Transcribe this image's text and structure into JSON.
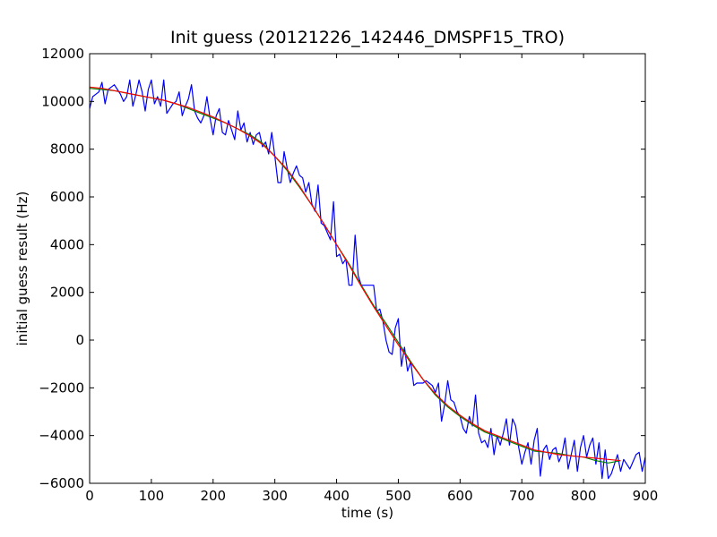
{
  "chart_data": {
    "type": "line",
    "title": "Init guess (20121226_142446_DMSPF15_TRO)",
    "xlabel": "time (s)",
    "ylabel": "initial guess result (Hz)",
    "xlim": [
      0,
      900
    ],
    "ylim": [
      -6000,
      12000
    ],
    "x_ticks": [
      0,
      100,
      200,
      300,
      400,
      500,
      600,
      700,
      800,
      900
    ],
    "y_ticks": [
      -6000,
      -4000,
      -2000,
      0,
      2000,
      4000,
      6000,
      8000,
      10000,
      12000
    ],
    "grid": false,
    "legend": "none",
    "series": [
      {
        "color": "#0000ff",
        "x": [
          0,
          5,
          10,
          15,
          20,
          25,
          30,
          35,
          40,
          45,
          50,
          55,
          60,
          65,
          70,
          75,
          80,
          85,
          90,
          95,
          100,
          105,
          110,
          115,
          120,
          125,
          130,
          135,
          140,
          145,
          150,
          155,
          160,
          165,
          170,
          175,
          180,
          185,
          190,
          195,
          200,
          205,
          210,
          215,
          220,
          225,
          230,
          235,
          240,
          245,
          250,
          255,
          260,
          265,
          270,
          275,
          280,
          285,
          290,
          295,
          300,
          305,
          310,
          315,
          320,
          325,
          330,
          335,
          340,
          345,
          350,
          355,
          360,
          365,
          370,
          375,
          380,
          385,
          390,
          395,
          400,
          405,
          410,
          415,
          420,
          425,
          430,
          435,
          440,
          445,
          450,
          455,
          460,
          465,
          470,
          475,
          480,
          485,
          490,
          495,
          500,
          505,
          510,
          515,
          520,
          525,
          530,
          535,
          540,
          545,
          550,
          555,
          560,
          565,
          570,
          575,
          580,
          585,
          590,
          595,
          600,
          605,
          610,
          615,
          620,
          625,
          630,
          635,
          640,
          645,
          650,
          655,
          660,
          665,
          670,
          675,
          680,
          685,
          690,
          695,
          700,
          705,
          710,
          715,
          720,
          725,
          730,
          735,
          740,
          745,
          750,
          755,
          760,
          765,
          770,
          775,
          780,
          785,
          790,
          795,
          800,
          805,
          810,
          815,
          820,
          825,
          830,
          835,
          840,
          845,
          850,
          855,
          860,
          865,
          870,
          875,
          880,
          885,
          890,
          895,
          900
        ],
        "y": [
          9700,
          10200,
          10300,
          10400,
          10800,
          9900,
          10500,
          10600,
          10700,
          10500,
          10300,
          10000,
          10200,
          10900,
          9800,
          10300,
          10900,
          10400,
          9600,
          10500,
          10900,
          9900,
          10200,
          9800,
          10900,
          9500,
          9700,
          9900,
          10000,
          10400,
          9400,
          9800,
          10100,
          10700,
          9600,
          9300,
          9100,
          9400,
          10200,
          9300,
          8600,
          9400,
          9700,
          8700,
          8600,
          9200,
          8800,
          8400,
          9600,
          8800,
          9100,
          8300,
          8700,
          8200,
          8600,
          8700,
          8100,
          8300,
          7800,
          8700,
          7700,
          6600,
          6600,
          7900,
          7200,
          6600,
          7000,
          7300,
          6900,
          6800,
          6200,
          6600,
          5700,
          5400,
          6500,
          4900,
          4800,
          4500,
          4200,
          5800,
          3500,
          3600,
          3200,
          3400,
          2300,
          2300,
          4400,
          2700,
          2300,
          2300,
          2300,
          2300,
          2300,
          1200,
          1300,
          800,
          0,
          -500,
          -600,
          500,
          900,
          -1100,
          -300,
          -1300,
          -900,
          -1900,
          -1800,
          -1800,
          -1800,
          -1700,
          -1800,
          -1900,
          -2200,
          -1800,
          -3400,
          -2700,
          -1700,
          -2500,
          -2600,
          -3000,
          -3200,
          -3700,
          -3900,
          -3200,
          -3600,
          -2300,
          -3900,
          -4300,
          -4200,
          -4500,
          -3700,
          -4800,
          -4000,
          -4400,
          -3900,
          -3300,
          -4400,
          -3300,
          -3600,
          -4500,
          -5200,
          -4700,
          -4300,
          -5200,
          -4200,
          -3700,
          -5700,
          -4600,
          -4400,
          -5000,
          -4600,
          -4500,
          -5100,
          -4800,
          -4100,
          -5400,
          -4800,
          -4200,
          -5500,
          -4500,
          -4000,
          -4900,
          -4400,
          -4100,
          -5200,
          -4300,
          -5800,
          -4600,
          -5800,
          -5600,
          -5200,
          -4800,
          -5500,
          -5000,
          -5200,
          -5400,
          -5100,
          -4800,
          -4700,
          -5500,
          -4900
        ]
      },
      {
        "color": "#008000",
        "x": [
          0,
          20,
          40,
          60,
          80,
          100,
          120,
          140,
          160,
          180,
          200,
          220,
          240,
          260,
          280,
          300,
          320,
          340,
          360,
          380,
          400,
          420,
          440,
          460,
          480,
          500,
          520,
          540,
          560,
          580,
          600,
          620,
          640,
          660,
          680,
          700,
          720,
          740,
          760,
          780,
          800,
          820,
          840,
          860
        ],
        "y": [
          10550,
          10500,
          10450,
          10350,
          10250,
          10150,
          10050,
          9900,
          9700,
          9500,
          9300,
          9100,
          8850,
          8600,
          8250,
          7700,
          7100,
          6400,
          5650,
          4850,
          4000,
          3200,
          2300,
          1450,
          700,
          -100,
          -900,
          -1650,
          -2300,
          -2800,
          -3200,
          -3550,
          -3850,
          -4050,
          -4250,
          -4450,
          -4650,
          -4700,
          -4750,
          -4850,
          -4900,
          -5050,
          -5150,
          -5050
        ]
      },
      {
        "color": "#ff0000",
        "x": [
          0,
          20,
          40,
          60,
          80,
          100,
          120,
          140,
          160,
          180,
          200,
          220,
          240,
          260,
          280,
          300,
          320,
          340,
          360,
          380,
          400,
          420,
          440,
          460,
          480,
          500,
          520,
          540,
          560,
          580,
          600,
          620,
          640,
          660,
          680,
          700,
          720,
          740,
          760,
          780,
          800,
          820,
          840,
          860
        ],
        "y": [
          10600,
          10550,
          10450,
          10350,
          10250,
          10150,
          10050,
          9900,
          9750,
          9550,
          9350,
          9100,
          8850,
          8550,
          8200,
          7700,
          7150,
          6450,
          5650,
          4850,
          4000,
          3150,
          2250,
          1400,
          600,
          -200,
          -950,
          -1650,
          -2250,
          -2750,
          -3150,
          -3500,
          -3800,
          -4000,
          -4200,
          -4400,
          -4600,
          -4700,
          -4800,
          -4850,
          -4900,
          -4950,
          -5000,
          -5050
        ]
      }
    ]
  }
}
